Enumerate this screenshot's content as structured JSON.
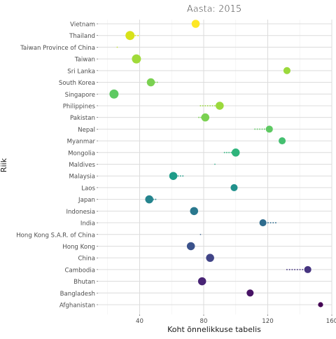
{
  "chart_data": {
    "type": "scatter",
    "title": "Aasta: 2015",
    "xlabel": "Koht õnnelikkuse tabelis",
    "ylabel": "Riik",
    "xlim": [
      14,
      160
    ],
    "xticks": [
      40,
      80,
      120,
      160
    ],
    "grid": true,
    "legend": "none",
    "categories": [
      "Afghanistan",
      "Bangladesh",
      "Bhutan",
      "Cambodia",
      "China",
      "Hong Kong",
      "Hong Kong S.A.R. of China",
      "India",
      "Indonesia",
      "Japan",
      "Laos",
      "Malaysia",
      "Maldives",
      "Mongolia",
      "Myanmar",
      "Nepal",
      "Pakistan",
      "Philippines",
      "Singapore",
      "South Korea",
      "Sri Lanka",
      "Taiwan",
      "Taiwan Province of China",
      "Thailand",
      "Vietnam"
    ],
    "points": [
      {
        "country": "Afghanistan",
        "x": 153,
        "size": 5,
        "trail_from": null,
        "color": "#440154"
      },
      {
        "country": "Bangladesh",
        "x": 109,
        "size": 7,
        "trail_from": null,
        "color": "#471365"
      },
      {
        "country": "Bhutan",
        "x": 79,
        "size": 8,
        "trail_from": null,
        "color": "#482475"
      },
      {
        "country": "Cambodia",
        "x": 145,
        "size": 7,
        "trail_from": 132,
        "color": "#463480"
      },
      {
        "country": "China",
        "x": 84,
        "size": 8,
        "trail_from": null,
        "color": "#414487"
      },
      {
        "country": "Hong Kong",
        "x": 72,
        "size": 8,
        "trail_from": null,
        "color": "#3b528b"
      },
      {
        "country": "Hong Kong S.A.R. of China",
        "x": null,
        "size": 0,
        "trail_from": 78,
        "color": "#355f8d"
      },
      {
        "country": "India",
        "x": 117,
        "size": 7,
        "trail_from": 125,
        "color": "#2f6c8e"
      },
      {
        "country": "Indonesia",
        "x": 74,
        "size": 8,
        "trail_from": null,
        "color": "#2a788e"
      },
      {
        "country": "Japan",
        "x": 46,
        "size": 8,
        "trail_from": 50,
        "color": "#25848e"
      },
      {
        "country": "Laos",
        "x": 99,
        "size": 7,
        "trail_from": null,
        "color": "#21918c"
      },
      {
        "country": "Malaysia",
        "x": 61,
        "size": 8,
        "trail_from": 67,
        "color": "#1e9c89"
      },
      {
        "country": "Maldives",
        "x": null,
        "size": 0,
        "trail_from": 87,
        "color": "#22a884"
      },
      {
        "country": "Mongolia",
        "x": 100,
        "size": 8,
        "trail_from": 93,
        "color": "#2fb47c"
      },
      {
        "country": "Myanmar",
        "x": 129,
        "size": 7,
        "trail_from": null,
        "color": "#44bf70"
      },
      {
        "country": "Nepal",
        "x": 121,
        "size": 7,
        "trail_from": 112,
        "color": "#5ec962"
      },
      {
        "country": "Pakistan",
        "x": 81,
        "size": 8,
        "trail_from": 77,
        "color": "#7ad151"
      },
      {
        "country": "Philippines",
        "x": 90,
        "size": 8,
        "trail_from": 78,
        "color": "#9bd93c"
      },
      {
        "country": "Singapore",
        "x": 24,
        "size": 9,
        "trail_from": null,
        "color": "#5ec962"
      },
      {
        "country": "South Korea",
        "x": 47,
        "size": 8,
        "trail_from": 51,
        "color": "#7ad151"
      },
      {
        "country": "Sri Lanka",
        "x": 132,
        "size": 7,
        "trail_from": null,
        "color": "#9bd93c"
      },
      {
        "country": "Taiwan",
        "x": 38,
        "size": 9,
        "trail_from": null,
        "color": "#a0da39"
      },
      {
        "country": "Taiwan Province of China",
        "x": null,
        "size": 0,
        "trail_from": 26,
        "color": "#bddf26"
      },
      {
        "country": "Thailand",
        "x": 34,
        "size": 9,
        "trail_from": 39,
        "color": "#d8e219"
      },
      {
        "country": "Vietnam",
        "x": 75,
        "size": 8,
        "trail_from": null,
        "color": "#fde725"
      }
    ]
  }
}
